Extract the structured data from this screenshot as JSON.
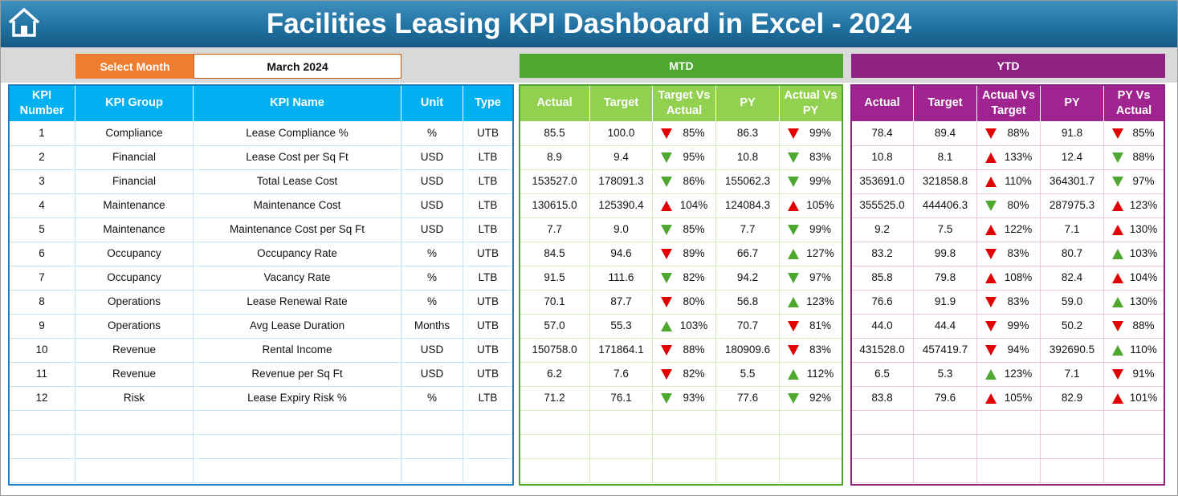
{
  "header": {
    "title": "Facilities Leasing KPI Dashboard in Excel - 2024"
  },
  "month_selector": {
    "label": "Select Month",
    "value": "March 2024"
  },
  "kpi_table": {
    "headers": [
      "KPI Number",
      "KPI Group",
      "KPI Name",
      "Unit",
      "Type"
    ]
  },
  "mtd": {
    "title": "MTD",
    "headers": [
      "Actual",
      "Target",
      "Target Vs Actual",
      "PY",
      "Actual Vs PY"
    ]
  },
  "ytd": {
    "title": "YTD",
    "headers": [
      "Actual",
      "Target",
      "Actual Vs Target",
      "PY",
      "PY Vs Actual"
    ]
  },
  "rows": [
    {
      "kpi": [
        "1",
        "Compliance",
        "Lease Compliance %",
        "%",
        "UTB"
      ],
      "mtd": [
        "85.5",
        "100.0",
        "85%",
        "86.3",
        "99%"
      ],
      "ytd": [
        "78.4",
        "89.4",
        "88%",
        "91.8",
        "85%"
      ]
    },
    {
      "kpi": [
        "2",
        "Financial",
        "Lease Cost per Sq Ft",
        "USD",
        "LTB"
      ],
      "mtd": [
        "8.9",
        "9.4",
        "95%",
        "10.8",
        "83%"
      ],
      "ytd": [
        "10.8",
        "8.1",
        "133%",
        "12.4",
        "88%"
      ]
    },
    {
      "kpi": [
        "3",
        "Financial",
        "Total Lease Cost",
        "USD",
        "LTB"
      ],
      "mtd": [
        "153527.0",
        "178091.3",
        "86%",
        "155062.3",
        "99%"
      ],
      "ytd": [
        "353691.0",
        "321858.8",
        "110%",
        "364301.7",
        "97%"
      ]
    },
    {
      "kpi": [
        "4",
        "Maintenance",
        "Maintenance Cost",
        "USD",
        "LTB"
      ],
      "mtd": [
        "130615.0",
        "125390.4",
        "104%",
        "124084.3",
        "105%"
      ],
      "ytd": [
        "355525.0",
        "444406.3",
        "80%",
        "287975.3",
        "123%"
      ]
    },
    {
      "kpi": [
        "5",
        "Maintenance",
        "Maintenance Cost per Sq Ft",
        "USD",
        "LTB"
      ],
      "mtd": [
        "7.7",
        "9.0",
        "85%",
        "7.7",
        "99%"
      ],
      "ytd": [
        "9.2",
        "7.5",
        "122%",
        "7.1",
        "130%"
      ]
    },
    {
      "kpi": [
        "6",
        "Occupancy",
        "Occupancy Rate",
        "%",
        "UTB"
      ],
      "mtd": [
        "84.5",
        "94.6",
        "89%",
        "66.7",
        "127%"
      ],
      "ytd": [
        "83.2",
        "99.8",
        "83%",
        "80.7",
        "103%"
      ]
    },
    {
      "kpi": [
        "7",
        "Occupancy",
        "Vacancy Rate",
        "%",
        "LTB"
      ],
      "mtd": [
        "91.5",
        "111.6",
        "82%",
        "94.2",
        "97%"
      ],
      "ytd": [
        "85.8",
        "79.8",
        "108%",
        "82.4",
        "104%"
      ]
    },
    {
      "kpi": [
        "8",
        "Operations",
        "Lease Renewal Rate",
        "%",
        "UTB"
      ],
      "mtd": [
        "70.1",
        "87.7",
        "80%",
        "56.8",
        "123%"
      ],
      "ytd": [
        "76.6",
        "91.9",
        "83%",
        "59.0",
        "130%"
      ]
    },
    {
      "kpi": [
        "9",
        "Operations",
        "Avg Lease Duration",
        "Months",
        "UTB"
      ],
      "mtd": [
        "57.0",
        "55.3",
        "103%",
        "70.7",
        "81%"
      ],
      "ytd": [
        "44.0",
        "44.4",
        "99%",
        "50.2",
        "88%"
      ]
    },
    {
      "kpi": [
        "10",
        "Revenue",
        "Rental Income",
        "USD",
        "UTB"
      ],
      "mtd": [
        "150758.0",
        "171864.1",
        "88%",
        "180909.6",
        "83%"
      ],
      "ytd": [
        "431528.0",
        "457419.7",
        "94%",
        "392690.5",
        "110%"
      ]
    },
    {
      "kpi": [
        "11",
        "Revenue",
        "Revenue per Sq Ft",
        "USD",
        "UTB"
      ],
      "mtd": [
        "6.2",
        "7.6",
        "82%",
        "5.5",
        "112%"
      ],
      "ytd": [
        "6.5",
        "5.3",
        "123%",
        "7.1",
        "91%"
      ]
    },
    {
      "kpi": [
        "12",
        "Risk",
        "Lease Expiry Risk %",
        "%",
        "LTB"
      ],
      "mtd": [
        "71.2",
        "76.1",
        "93%",
        "77.6",
        "92%"
      ],
      "ytd": [
        "83.8",
        "79.6",
        "105%",
        "82.9",
        "101%"
      ]
    }
  ]
}
